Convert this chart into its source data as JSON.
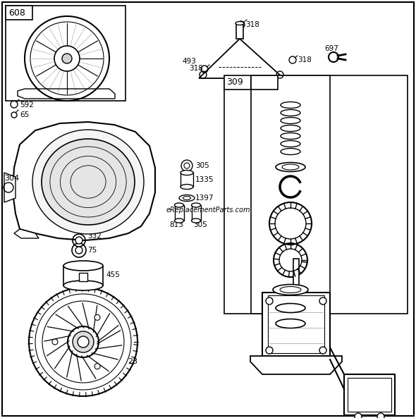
{
  "bg_color": "#ffffff",
  "border_color": "#000000",
  "text_color": "#000000",
  "watermark": "eReplacementParts.com"
}
